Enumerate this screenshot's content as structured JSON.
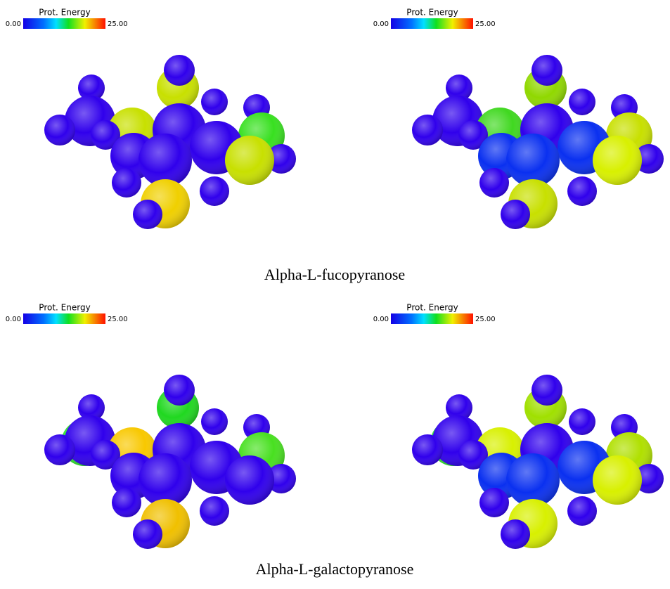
{
  "panels": [
    {
      "colorbar": {
        "title": "Prot. Energy",
        "min": "0.00",
        "max": "25.00"
      }
    },
    {
      "colorbar": {
        "title": "Prot. Energy",
        "min": "0.00",
        "max": "25.00"
      }
    },
    {
      "colorbar": {
        "title": "Prot. Energy",
        "min": "0.00",
        "max": "25.00"
      }
    },
    {
      "colorbar": {
        "title": "Prot. Energy",
        "min": "0.00",
        "max": "25.00"
      }
    }
  ],
  "captions": [
    "Alpha-L-fucopyranose",
    "Alpha-L-galactopyranose"
  ]
}
